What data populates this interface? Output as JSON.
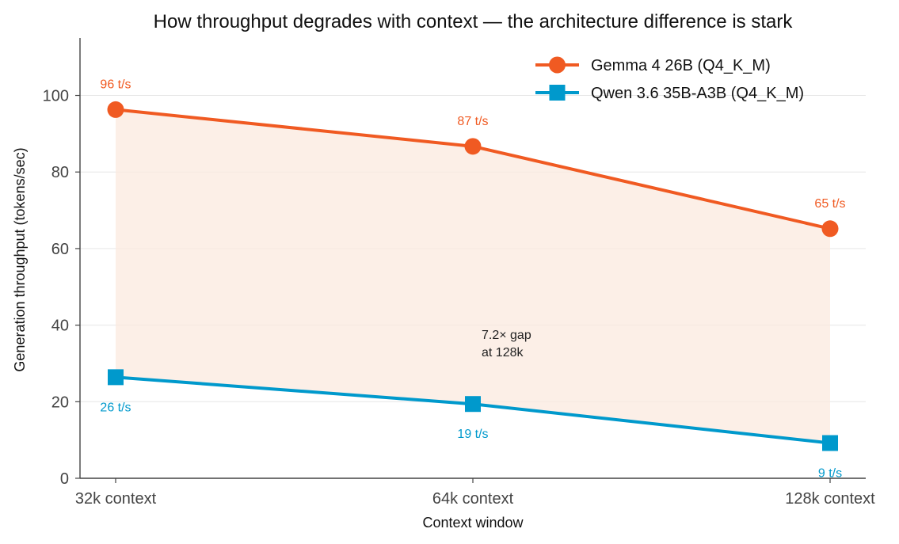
{
  "chart_data": {
    "type": "line",
    "title": "How throughput degrades with context — the architecture difference is stark",
    "xlabel": "Context window",
    "ylabel": "Generation throughput (tokens/sec)",
    "categories": [
      "32k context",
      "64k context",
      "128k context"
    ],
    "ylim": [
      0,
      115
    ],
    "yticks": [
      0,
      20,
      40,
      60,
      80,
      100
    ],
    "grid": "horizontal",
    "legend_position": "top-right",
    "fill_between": true,
    "series": [
      {
        "name": "Gemma 4 26B (Q4_K_M)",
        "values": [
          96.3,
          86.7,
          65.2
        ],
        "labels": [
          "96 t/s",
          "87 t/s",
          "65 t/s"
        ],
        "marker": "circle",
        "color": "#f05a22"
      },
      {
        "name": "Qwen 3.6 35B-A3B (Q4_K_M)",
        "values": [
          26.4,
          19.4,
          9.2
        ],
        "labels": [
          "26 t/s",
          "19 t/s",
          "9 t/s"
        ],
        "marker": "square",
        "color": "#0099cc"
      }
    ],
    "annotation": {
      "lines": [
        "7.2× gap",
        "at 128k"
      ],
      "x_category": "64k context",
      "y": 36
    },
    "fill_color": "#fbe9df"
  }
}
